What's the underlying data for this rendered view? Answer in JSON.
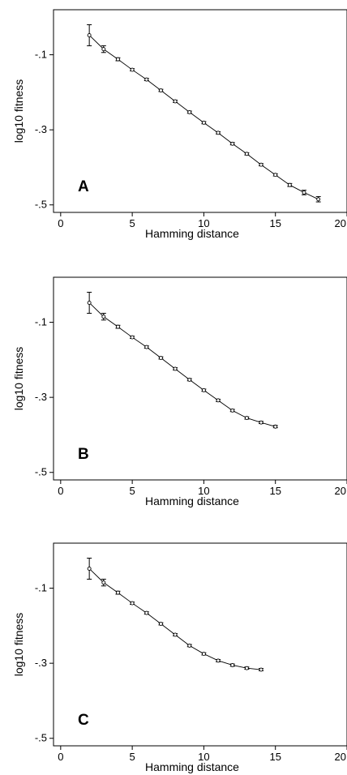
{
  "chart_data": [
    {
      "type": "line",
      "panel_label": "A",
      "xlabel": "Hamming distance",
      "ylabel": "log10 fitness",
      "xlim": [
        -0.5,
        20
      ],
      "ylim": [
        -0.52,
        0.02
      ],
      "xticks": [
        0,
        5,
        10,
        15,
        20
      ],
      "xtick_labels": [
        "0",
        "5",
        "10",
        "15",
        "20"
      ],
      "yticks": [
        -0.1,
        -0.3,
        -0.5
      ],
      "ytick_labels": [
        "-.1",
        "-.3",
        "-.5"
      ],
      "grid": false,
      "x": [
        2,
        3,
        4,
        5,
        6,
        7,
        8,
        9,
        10,
        11,
        12,
        13,
        14,
        15,
        16,
        17,
        18
      ],
      "y": [
        -0.048,
        -0.085,
        -0.112,
        -0.14,
        -0.166,
        -0.195,
        -0.224,
        -0.253,
        -0.281,
        -0.308,
        -0.337,
        -0.364,
        -0.393,
        -0.42,
        -0.447,
        -0.467,
        -0.485
      ],
      "yerr": [
        0.028,
        0.009,
        0.004,
        0.003,
        0.003,
        0.003,
        0.003,
        0.003,
        0.003,
        0.003,
        0.003,
        0.003,
        0.003,
        0.003,
        0.004,
        0.006,
        0.007
      ]
    },
    {
      "type": "line",
      "panel_label": "B",
      "xlabel": "Hamming distance",
      "ylabel": "log10 fitness",
      "xlim": [
        -0.5,
        20
      ],
      "ylim": [
        -0.52,
        0.02
      ],
      "xticks": [
        0,
        5,
        10,
        15,
        20
      ],
      "xtick_labels": [
        "0",
        "5",
        "10",
        "15",
        "20"
      ],
      "yticks": [
        -0.1,
        -0.3,
        -0.5
      ],
      "ytick_labels": [
        "-.1",
        "-.3",
        "-.5"
      ],
      "grid": false,
      "x": [
        2,
        3,
        4,
        5,
        6,
        7,
        8,
        9,
        10,
        11,
        12,
        13,
        14,
        15
      ],
      "y": [
        -0.048,
        -0.085,
        -0.112,
        -0.14,
        -0.166,
        -0.195,
        -0.224,
        -0.253,
        -0.281,
        -0.308,
        -0.335,
        -0.355,
        -0.367,
        -0.378
      ],
      "yerr": [
        0.028,
        0.009,
        0.004,
        0.003,
        0.003,
        0.003,
        0.003,
        0.003,
        0.003,
        0.003,
        0.003,
        0.003,
        0.003,
        0.003
      ]
    },
    {
      "type": "line",
      "panel_label": "C",
      "xlabel": "Hamming distance",
      "ylabel": "log10 fitness",
      "xlim": [
        -0.5,
        20
      ],
      "ylim": [
        -0.52,
        0.02
      ],
      "xticks": [
        0,
        5,
        10,
        15,
        20
      ],
      "xtick_labels": [
        "0",
        "5",
        "10",
        "15",
        "20"
      ],
      "yticks": [
        -0.1,
        -0.3,
        -0.5
      ],
      "ytick_labels": [
        "-.1",
        "-.3",
        "-.5"
      ],
      "grid": false,
      "x": [
        2,
        3,
        4,
        5,
        6,
        7,
        8,
        9,
        10,
        11,
        12,
        13,
        14
      ],
      "y": [
        -0.048,
        -0.085,
        -0.112,
        -0.14,
        -0.166,
        -0.195,
        -0.224,
        -0.253,
        -0.275,
        -0.293,
        -0.305,
        -0.313,
        -0.317
      ],
      "yerr": [
        0.028,
        0.009,
        0.004,
        0.003,
        0.003,
        0.003,
        0.003,
        0.003,
        0.003,
        0.003,
        0.003,
        0.003,
        0.003
      ]
    }
  ]
}
